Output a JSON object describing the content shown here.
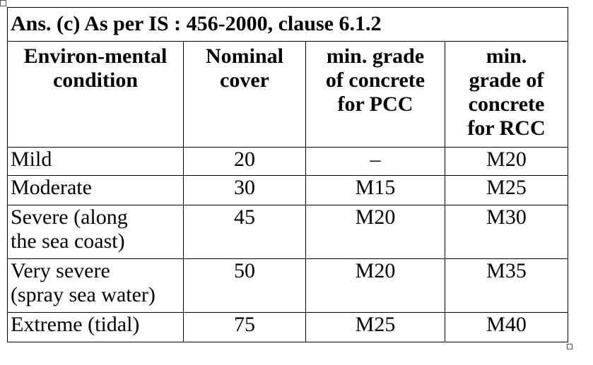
{
  "title": "Ans. (c) As per IS : 456-2000, clause 6.1.2",
  "table": {
    "headers": [
      [
        "Environ-mental",
        "condition"
      ],
      [
        "Nominal",
        "cover"
      ],
      [
        "min. grade",
        "of concrete",
        "for PCC"
      ],
      [
        "min.",
        "grade of",
        "concrete",
        "for RCC"
      ]
    ],
    "rows": [
      [
        [
          "Mild"
        ],
        20,
        "–",
        "M20"
      ],
      [
        [
          "Moderate"
        ],
        30,
        "M15",
        "M25"
      ],
      [
        [
          "Severe (along",
          "the sea coast)"
        ],
        45,
        "M20",
        "M30"
      ],
      [
        [
          "Very severe",
          "(spray sea water)"
        ],
        50,
        "M20",
        "M35"
      ],
      [
        [
          "Extreme (tidal)"
        ],
        75,
        "M25",
        "M40"
      ]
    ]
  }
}
